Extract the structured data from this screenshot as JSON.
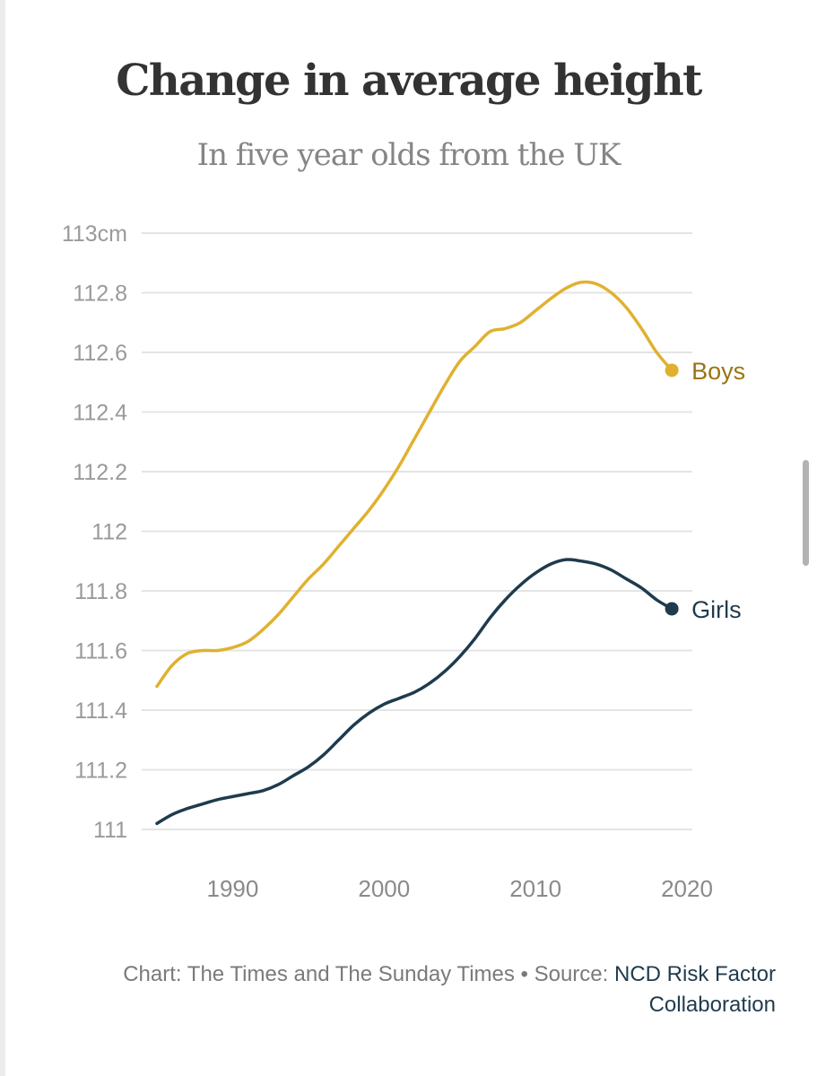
{
  "chart_data": {
    "type": "line",
    "title": "Change in average height",
    "subtitle": "In five year olds from the UK",
    "y_ticks": [
      "113cm",
      "112.8",
      "112.6",
      "112.4",
      "112.2",
      "112",
      "111.8",
      "111.6",
      "111.4",
      "111.2",
      "111"
    ],
    "x_ticks": [
      "1990",
      "2000",
      "2010",
      "2020"
    ],
    "ylim": [
      111,
      113
    ],
    "xlim": [
      1985,
      2020
    ],
    "grid": true,
    "legend": "direct labels at line ends",
    "series": [
      {
        "name": "Boys",
        "color": "#e0b130",
        "label_color": "#9a7412",
        "x": [
          1985,
          1986,
          1987,
          1988,
          1989,
          1990,
          1991,
          1992,
          1993,
          1994,
          1995,
          1996,
          1997,
          1998,
          1999,
          2000,
          2001,
          2002,
          2003,
          2004,
          2005,
          2006,
          2007,
          2008,
          2009,
          2010,
          2011,
          2012,
          2013,
          2014,
          2015,
          2016,
          2017,
          2018,
          2019
        ],
        "values": [
          111.48,
          111.55,
          111.59,
          111.6,
          111.6,
          111.61,
          111.63,
          111.67,
          111.72,
          111.78,
          111.84,
          111.89,
          111.95,
          112.01,
          112.07,
          112.14,
          112.22,
          112.31,
          112.4,
          112.49,
          112.57,
          112.62,
          112.67,
          112.68,
          112.7,
          112.74,
          112.78,
          112.815,
          112.835,
          112.83,
          112.8,
          112.75,
          112.68,
          112.6,
          112.54
        ]
      },
      {
        "name": "Girls",
        "color": "#1f3b4d",
        "label_color": "#1f3b4d",
        "x": [
          1985,
          1986,
          1987,
          1988,
          1989,
          1990,
          1991,
          1992,
          1993,
          1994,
          1995,
          1996,
          1997,
          1998,
          1999,
          2000,
          2001,
          2002,
          2003,
          2004,
          2005,
          2006,
          2007,
          2008,
          2009,
          2010,
          2011,
          2012,
          2013,
          2014,
          2015,
          2016,
          2017,
          2018,
          2019
        ],
        "values": [
          111.02,
          111.05,
          111.07,
          111.085,
          111.1,
          111.11,
          111.12,
          111.13,
          111.15,
          111.18,
          111.21,
          111.25,
          111.3,
          111.35,
          111.39,
          111.42,
          111.44,
          111.46,
          111.49,
          111.53,
          111.58,
          111.64,
          111.71,
          111.77,
          111.82,
          111.86,
          111.89,
          111.905,
          111.9,
          111.89,
          111.87,
          111.84,
          111.81,
          111.77,
          111.74
        ]
      }
    ]
  },
  "credit": {
    "prefix": "Chart: The Times and The Sunday Times • Source: ",
    "source_name": "NCD Risk Factor Collaboration"
  }
}
